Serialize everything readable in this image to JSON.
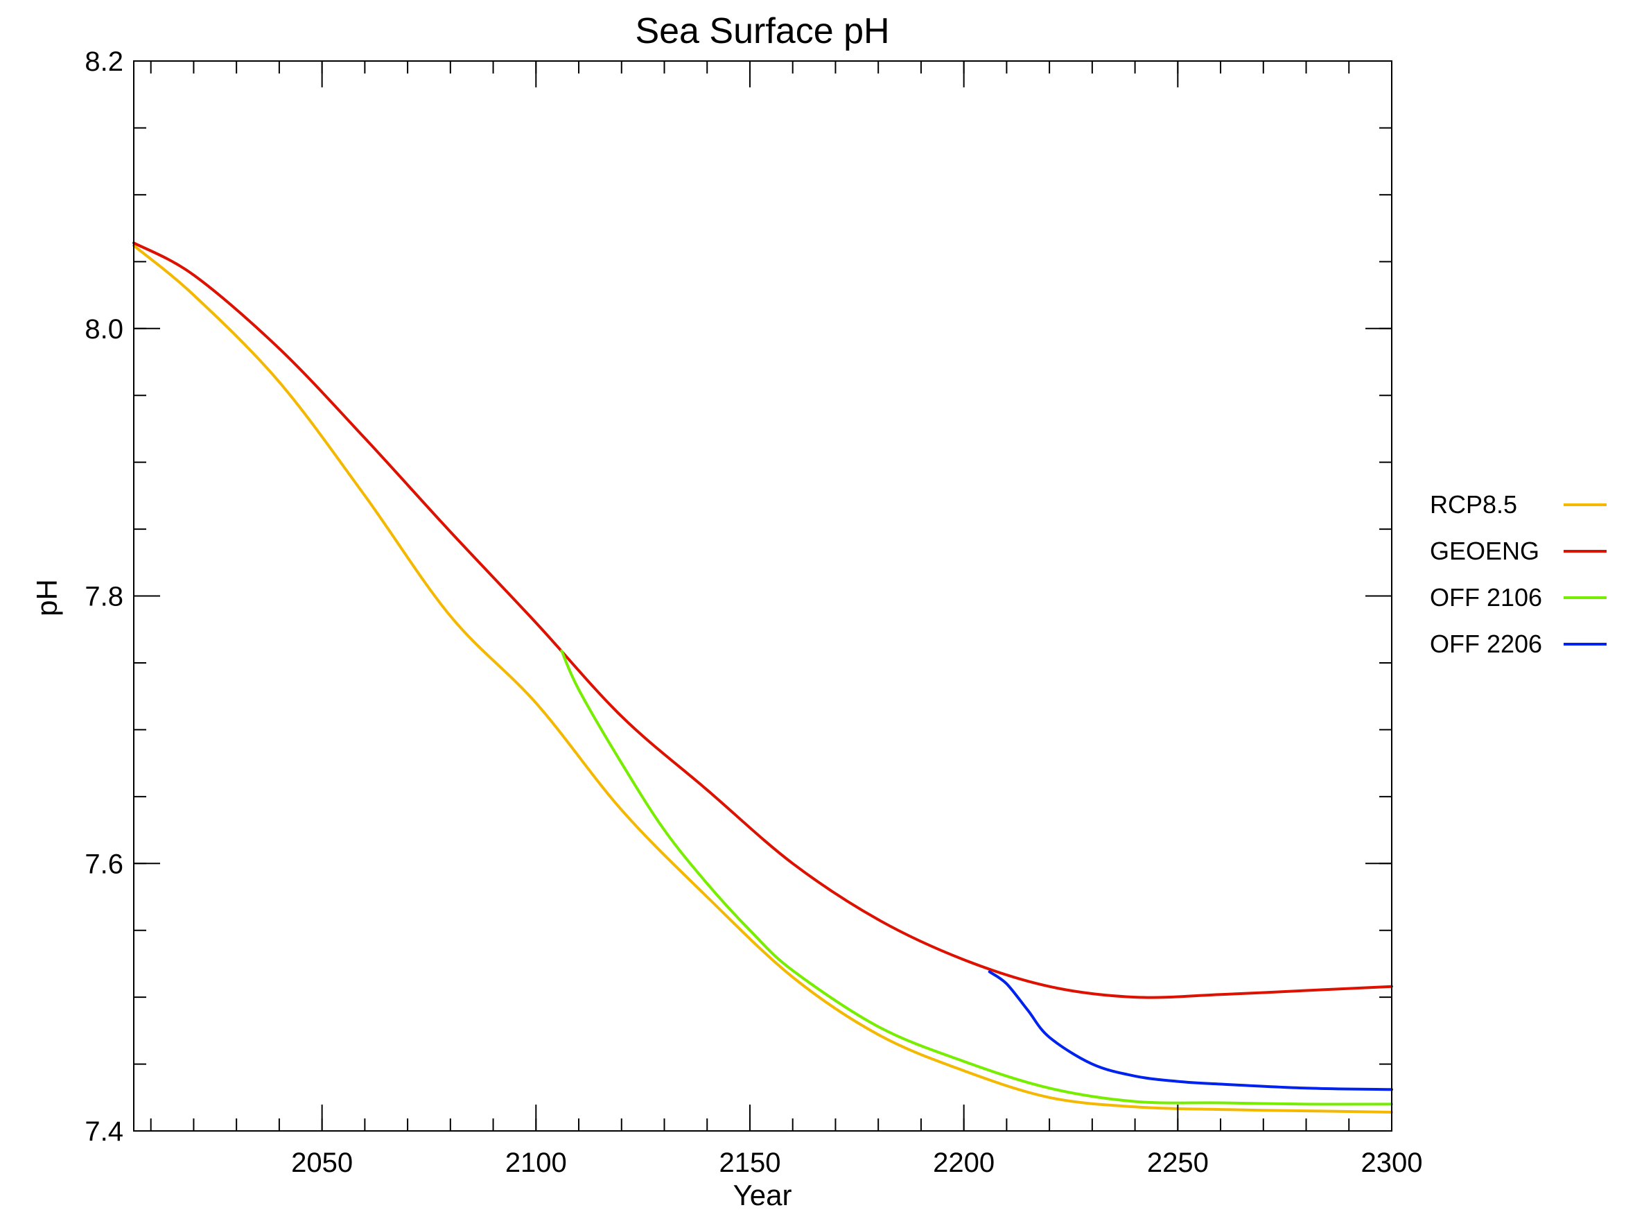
{
  "chart_data": {
    "type": "line",
    "title": "Sea Surface pH",
    "xlabel": "Year",
    "ylabel": "pH",
    "xlim": [
      2006,
      2300
    ],
    "ylim": [
      7.4,
      8.2
    ],
    "xticks": [
      2050,
      2100,
      2150,
      2200,
      2250,
      2300
    ],
    "xtick_labels": [
      "2050",
      "2100",
      "2150",
      "2200",
      "2250",
      "2300"
    ],
    "xminor_step": 10,
    "yticks": [
      7.4,
      7.6,
      7.8,
      8.0,
      8.2
    ],
    "ytick_labels": [
      "7.4",
      "7.6",
      "7.8",
      "8.0",
      "8.2"
    ],
    "yminor_step": 0.05,
    "grid": false,
    "legend_position": "right",
    "series": [
      {
        "name": "RCP8.5",
        "color": "#f5b800",
        "x": [
          2006,
          2020,
          2040,
          2060,
          2080,
          2100,
          2120,
          2140,
          2160,
          2180,
          2200,
          2220,
          2240,
          2260,
          2280,
          2300
        ],
        "y": [
          8.062,
          8.025,
          7.96,
          7.875,
          7.785,
          7.72,
          7.64,
          7.575,
          7.515,
          7.472,
          7.445,
          7.425,
          7.418,
          7.416,
          7.415,
          7.414
        ]
      },
      {
        "name": "GEOENG",
        "color": "#dd1100",
        "x": [
          2006,
          2020,
          2040,
          2060,
          2080,
          2100,
          2120,
          2140,
          2160,
          2180,
          2200,
          2220,
          2240,
          2260,
          2280,
          2300
        ],
        "y": [
          8.064,
          8.04,
          7.985,
          7.918,
          7.848,
          7.78,
          7.71,
          7.655,
          7.6,
          7.558,
          7.528,
          7.508,
          7.5,
          7.502,
          7.505,
          7.508
        ]
      },
      {
        "name": "OFF 2106",
        "color": "#77ee00",
        "x": [
          2106,
          2110,
          2120,
          2130,
          2140,
          2150,
          2160,
          2180,
          2200,
          2220,
          2240,
          2260,
          2280,
          2300
        ],
        "y": [
          7.759,
          7.73,
          7.675,
          7.625,
          7.585,
          7.55,
          7.52,
          7.478,
          7.452,
          7.432,
          7.422,
          7.421,
          7.42,
          7.42
        ]
      },
      {
        "name": "OFF 2206",
        "color": "#0022ee",
        "x": [
          2206,
          2210,
          2215,
          2220,
          2230,
          2240,
          2250,
          2260,
          2280,
          2300
        ],
        "y": [
          7.519,
          7.51,
          7.49,
          7.47,
          7.45,
          7.441,
          7.437,
          7.435,
          7.432,
          7.431
        ]
      }
    ]
  }
}
